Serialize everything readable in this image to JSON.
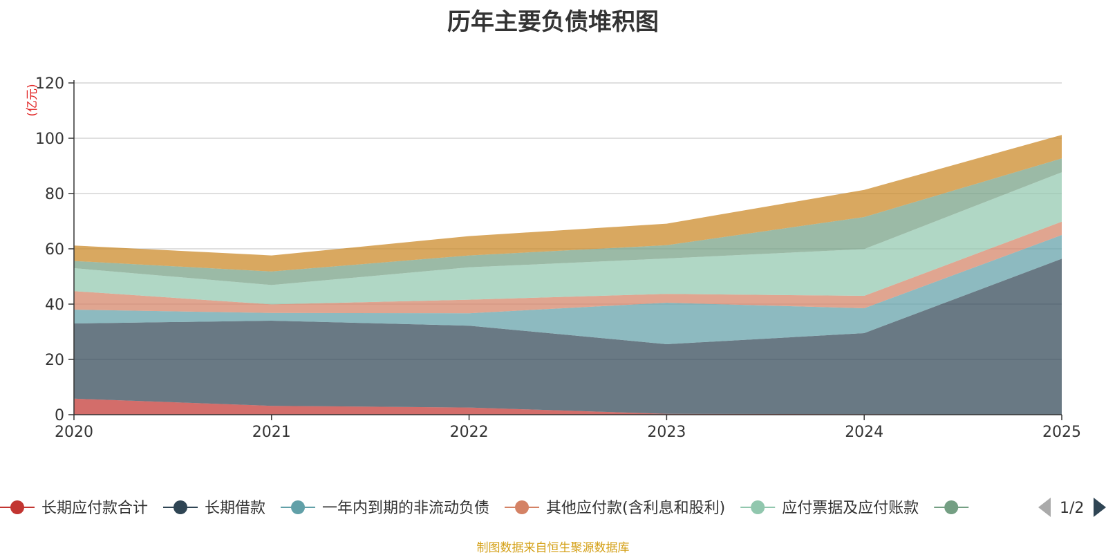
{
  "chart_data": {
    "type": "area",
    "stacked": true,
    "title": "历年主要负债堆积图",
    "unit": "(亿元)",
    "x": [
      "2020",
      "2021",
      "2022",
      "2023",
      "2024",
      "2025"
    ],
    "ylim": [
      0,
      120
    ],
    "yticks": [
      0,
      20,
      40,
      60,
      80,
      100,
      120
    ],
    "grid": true,
    "series": [
      {
        "name": "长期应付款合计",
        "color": "#c23531",
        "values": [
          5.8,
          3.2,
          2.6,
          0.3,
          0.2,
          0.0
        ]
      },
      {
        "name": "长期借款",
        "color": "#2f4554",
        "values": [
          27.2,
          30.8,
          29.6,
          25.2,
          29.3,
          56.4
        ]
      },
      {
        "name": "一年内到期的非流动负债",
        "color": "#61a0a8",
        "values": [
          5.0,
          2.8,
          4.5,
          15.0,
          9.0,
          8.6
        ]
      },
      {
        "name": "其他应付款(含利息和股利)",
        "color": "#d48265",
        "values": [
          6.7,
          3.1,
          4.9,
          3.2,
          4.5,
          4.8
        ]
      },
      {
        "name": "应付票据及应付账款",
        "color": "#91c7ae",
        "values": [
          8.3,
          7.0,
          11.7,
          12.8,
          16.9,
          17.9
        ]
      },
      {
        "name": "",
        "color": "#749f83",
        "values": [
          2.6,
          4.9,
          4.3,
          4.8,
          11.6,
          5.0
        ]
      },
      {
        "name": "",
        "color": "#ca8622",
        "values": [
          5.6,
          5.8,
          7.0,
          7.8,
          9.8,
          8.5
        ]
      }
    ],
    "legend": {
      "position": "bottom",
      "page": "1/2",
      "visible_count": 6
    }
  },
  "source_note": "制图数据来自恒生聚源数据库"
}
